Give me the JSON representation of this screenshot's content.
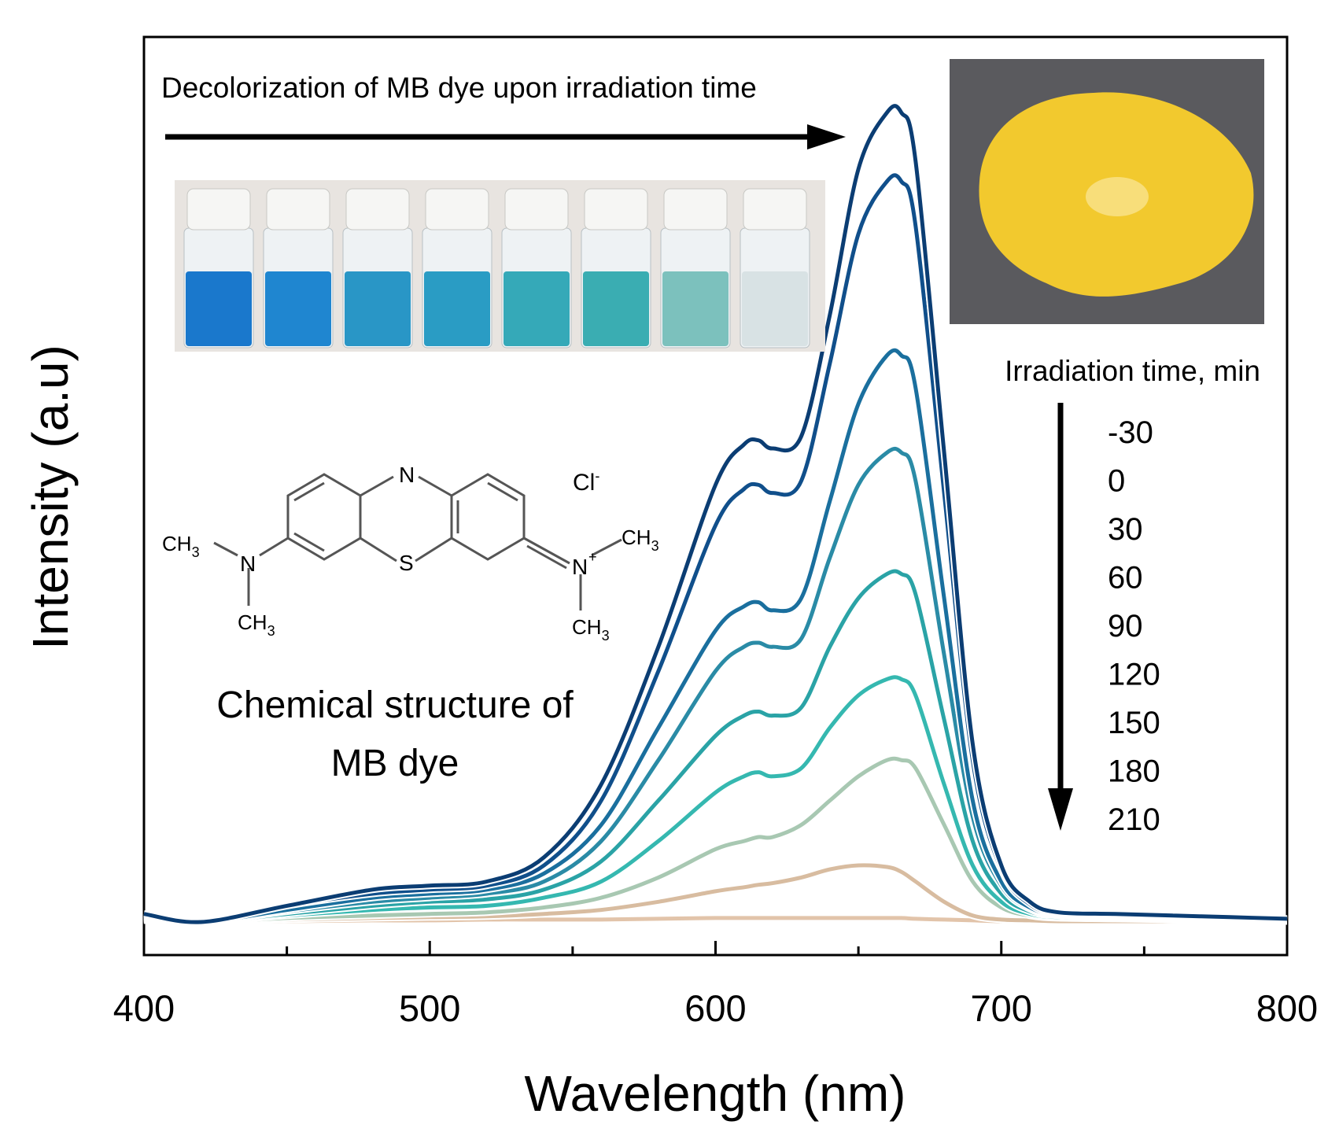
{
  "chart_data": {
    "type": "line",
    "xlabel": "Wavelength (nm)",
    "ylabel": "Intensity (a.u)",
    "xlim": [
      400,
      800
    ],
    "ylim": [
      0,
      1.05
    ],
    "x_ticks": [
      "400",
      "500",
      "600",
      "700",
      "800"
    ],
    "y_ticks": [],
    "grid": false,
    "legend_title": "Irradiation time, min",
    "legend_labels": [
      "-30",
      "0",
      "30",
      "60",
      "90",
      "120",
      "150",
      "180",
      "210"
    ],
    "legend_placement": "right",
    "series": [
      {
        "name": "-30",
        "color": "#0b3d73",
        "x": [
          400,
          420,
          450,
          480,
          500,
          520,
          540,
          560,
          580,
          600,
          610,
          615,
          620,
          630,
          640,
          650,
          660,
          665,
          670,
          680,
          690,
          700,
          710,
          720,
          740,
          760,
          780,
          800
        ],
        "values": [
          0.01,
          0.0,
          0.02,
          0.04,
          0.045,
          0.05,
          0.08,
          0.17,
          0.34,
          0.54,
          0.59,
          0.595,
          0.585,
          0.6,
          0.75,
          0.93,
          1.0,
          1.0,
          0.94,
          0.58,
          0.22,
          0.07,
          0.025,
          0.012,
          0.01,
          0.008,
          0.006,
          0.004
        ]
      },
      {
        "name": "0",
        "color": "#104f8b",
        "x": [
          400,
          420,
          450,
          480,
          500,
          520,
          540,
          560,
          580,
          600,
          610,
          615,
          620,
          630,
          640,
          650,
          660,
          665,
          670,
          680,
          690,
          700,
          710,
          720,
          740,
          760,
          780,
          800
        ],
        "values": [
          0.01,
          0.0,
          0.02,
          0.035,
          0.04,
          0.045,
          0.07,
          0.15,
          0.31,
          0.49,
          0.535,
          0.54,
          0.53,
          0.545,
          0.69,
          0.85,
          0.915,
          0.915,
          0.86,
          0.53,
          0.2,
          0.065,
          0.022,
          0.011,
          0.009,
          0.007,
          0.005,
          0.003
        ]
      },
      {
        "name": "30",
        "color": "#1a6f9e",
        "x": [
          400,
          420,
          450,
          480,
          500,
          520,
          540,
          560,
          580,
          600,
          610,
          615,
          620,
          630,
          640,
          650,
          660,
          665,
          670,
          680,
          690,
          700,
          710,
          720,
          740,
          760,
          780,
          800
        ],
        "values": [
          0.008,
          0.0,
          0.015,
          0.03,
          0.035,
          0.04,
          0.06,
          0.12,
          0.24,
          0.36,
          0.39,
          0.395,
          0.385,
          0.4,
          0.52,
          0.64,
          0.7,
          0.7,
          0.66,
          0.4,
          0.15,
          0.05,
          0.018,
          0.01,
          0.008,
          0.006,
          0.005,
          0.003
        ]
      },
      {
        "name": "60",
        "color": "#2a8ba6",
        "x": [
          400,
          420,
          450,
          480,
          500,
          520,
          540,
          560,
          580,
          600,
          610,
          615,
          620,
          630,
          640,
          650,
          660,
          665,
          670,
          680,
          690,
          700,
          710,
          720,
          740,
          760,
          780,
          800
        ],
        "values": [
          0.007,
          0.0,
          0.013,
          0.025,
          0.03,
          0.035,
          0.05,
          0.1,
          0.2,
          0.31,
          0.34,
          0.345,
          0.34,
          0.35,
          0.45,
          0.54,
          0.58,
          0.58,
          0.545,
          0.33,
          0.13,
          0.045,
          0.016,
          0.009,
          0.007,
          0.005,
          0.004,
          0.003
        ]
      },
      {
        "name": "90",
        "color": "#2aa3a6",
        "x": [
          400,
          420,
          450,
          480,
          500,
          520,
          540,
          560,
          580,
          600,
          610,
          615,
          620,
          630,
          640,
          650,
          660,
          665,
          670,
          680,
          690,
          700,
          710,
          720,
          740,
          760,
          780,
          800
        ],
        "values": [
          0.006,
          0.0,
          0.01,
          0.02,
          0.025,
          0.028,
          0.04,
          0.075,
          0.15,
          0.23,
          0.255,
          0.26,
          0.255,
          0.265,
          0.34,
          0.4,
          0.43,
          0.43,
          0.405,
          0.25,
          0.1,
          0.035,
          0.013,
          0.008,
          0.006,
          0.004,
          0.003,
          0.002
        ]
      },
      {
        "name": "120",
        "color": "#35b8b0",
        "x": [
          400,
          420,
          450,
          480,
          500,
          520,
          540,
          560,
          580,
          600,
          610,
          615,
          620,
          630,
          640,
          650,
          660,
          665,
          670,
          680,
          690,
          700,
          710,
          720,
          740,
          760,
          780,
          800
        ],
        "values": [
          0.005,
          0.0,
          0.008,
          0.015,
          0.018,
          0.02,
          0.03,
          0.05,
          0.1,
          0.16,
          0.18,
          0.185,
          0.18,
          0.19,
          0.24,
          0.28,
          0.3,
          0.3,
          0.28,
          0.17,
          0.07,
          0.025,
          0.01,
          0.006,
          0.005,
          0.003,
          0.002,
          0.002
        ]
      },
      {
        "name": "150",
        "color": "#a8c8b2",
        "x": [
          400,
          420,
          450,
          480,
          500,
          520,
          540,
          560,
          580,
          600,
          610,
          615,
          620,
          630,
          640,
          650,
          660,
          665,
          670,
          680,
          690,
          700,
          710,
          720,
          740,
          760,
          780,
          800
        ],
        "values": [
          0.004,
          0.0,
          0.005,
          0.008,
          0.01,
          0.012,
          0.018,
          0.03,
          0.055,
          0.09,
          0.1,
          0.105,
          0.105,
          0.12,
          0.15,
          0.18,
          0.2,
          0.2,
          0.19,
          0.12,
          0.05,
          0.018,
          0.008,
          0.005,
          0.004,
          0.003,
          0.002,
          0.001
        ]
      },
      {
        "name": "180",
        "color": "#d8bca0",
        "x": [
          400,
          420,
          450,
          480,
          500,
          520,
          540,
          560,
          580,
          600,
          610,
          615,
          620,
          630,
          640,
          650,
          660,
          665,
          670,
          680,
          690,
          700,
          710,
          720,
          740,
          760,
          780,
          800
        ],
        "values": [
          0.003,
          0.0,
          0.003,
          0.005,
          0.006,
          0.007,
          0.01,
          0.015,
          0.025,
          0.038,
          0.043,
          0.046,
          0.048,
          0.055,
          0.065,
          0.07,
          0.068,
          0.062,
          0.05,
          0.025,
          0.008,
          0.003,
          0.002,
          0.001,
          0.001,
          0.001,
          0.001,
          0.001
        ]
      },
      {
        "name": "210",
        "color": "#e2c4aa",
        "x": [
          400,
          420,
          450,
          480,
          500,
          520,
          540,
          560,
          580,
          600,
          610,
          615,
          620,
          630,
          640,
          650,
          660,
          665,
          670,
          680,
          690,
          700,
          710,
          720,
          740,
          760,
          780,
          800
        ],
        "values": [
          0.002,
          0.0,
          0.001,
          0.002,
          0.002,
          0.003,
          0.003,
          0.003,
          0.004,
          0.005,
          0.005,
          0.005,
          0.005,
          0.005,
          0.005,
          0.005,
          0.005,
          0.005,
          0.004,
          0.003,
          0.002,
          0.001,
          0.001,
          0.001,
          0.001,
          0.001,
          0.001,
          0.001
        ]
      }
    ]
  },
  "annotations": {
    "decolorization_text": "Decolorization of MB dye upon irradiation time",
    "structure_caption_line1": "Chemical structure of",
    "structure_caption_line2": "MB dye",
    "structure_atoms": {
      "n_top": "N",
      "s_bottom": "S",
      "n_left": "N",
      "n_right": "N",
      "plus": "+",
      "chloride": "Cl",
      "chloride_charge": "-",
      "methyl": "CH",
      "methyl_sub": "3"
    }
  },
  "inset_vials": {
    "colors": [
      "#1a78cc",
      "#1f86d0",
      "#2996c6",
      "#2a9cc4",
      "#35a9b8",
      "#3aadb2",
      "#7cc1bd",
      "#d8e2e4"
    ]
  },
  "inset_powder": {
    "background": "#5a5a5e",
    "powder_color": "#f2c92e"
  }
}
